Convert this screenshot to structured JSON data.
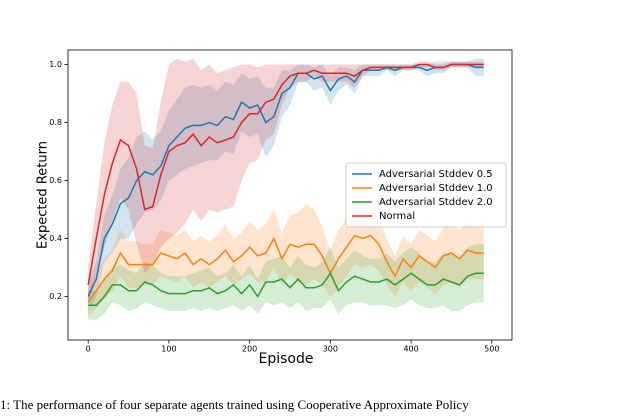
{
  "chart_data": {
    "type": "line",
    "xlabel": "Episode",
    "ylabel": "Expected Return",
    "caption": "1: The performance of four separate agents trained using Cooperative Approximate Policy",
    "x": [
      0,
      10,
      20,
      30,
      40,
      50,
      60,
      70,
      80,
      90,
      100,
      110,
      120,
      130,
      140,
      150,
      160,
      170,
      180,
      190,
      200,
      210,
      220,
      230,
      240,
      250,
      260,
      270,
      280,
      290,
      300,
      310,
      320,
      330,
      340,
      350,
      360,
      370,
      380,
      390,
      400,
      410,
      420,
      430,
      440,
      450,
      460,
      470,
      480,
      490
    ],
    "series": [
      {
        "name": "Adversarial Stddev 0.5",
        "color": "#1f77b4",
        "values": [
          0.2,
          0.26,
          0.4,
          0.45,
          0.52,
          0.54,
          0.6,
          0.63,
          0.62,
          0.65,
          0.72,
          0.75,
          0.78,
          0.79,
          0.79,
          0.8,
          0.79,
          0.82,
          0.81,
          0.87,
          0.85,
          0.86,
          0.8,
          0.82,
          0.9,
          0.92,
          0.97,
          0.97,
          0.95,
          0.96,
          0.91,
          0.95,
          0.96,
          0.94,
          0.98,
          0.98,
          0.98,
          0.99,
          0.98,
          0.99,
          0.99,
          0.99,
          0.98,
          0.99,
          0.99,
          1.0,
          1.0,
          1.0,
          0.99,
          0.99
        ],
        "spread": [
          0.05,
          0.06,
          0.08,
          0.1,
          0.12,
          0.14,
          0.15,
          0.14,
          0.12,
          0.12,
          0.12,
          0.13,
          0.14,
          0.14,
          0.13,
          0.13,
          0.12,
          0.12,
          0.12,
          0.1,
          0.1,
          0.1,
          0.12,
          0.1,
          0.08,
          0.06,
          0.03,
          0.03,
          0.04,
          0.04,
          0.05,
          0.04,
          0.03,
          0.04,
          0.02,
          0.02,
          0.02,
          0.01,
          0.02,
          0.01,
          0.01,
          0.01,
          0.02,
          0.02,
          0.02,
          0.01,
          0.01,
          0.01,
          0.03,
          0.03
        ]
      },
      {
        "name": "Adversarial Stddev 1.0",
        "color": "#ff7f0e",
        "values": [
          0.18,
          0.22,
          0.26,
          0.29,
          0.35,
          0.31,
          0.31,
          0.31,
          0.31,
          0.35,
          0.34,
          0.33,
          0.35,
          0.31,
          0.33,
          0.31,
          0.33,
          0.36,
          0.32,
          0.34,
          0.37,
          0.34,
          0.35,
          0.4,
          0.33,
          0.38,
          0.37,
          0.38,
          0.38,
          0.34,
          0.28,
          0.33,
          0.37,
          0.41,
          0.4,
          0.41,
          0.38,
          0.32,
          0.27,
          0.33,
          0.3,
          0.34,
          0.32,
          0.3,
          0.34,
          0.35,
          0.33,
          0.36,
          0.35,
          0.35
        ],
        "spread": [
          0.05,
          0.06,
          0.07,
          0.07,
          0.08,
          0.08,
          0.08,
          0.07,
          0.07,
          0.08,
          0.08,
          0.08,
          0.08,
          0.08,
          0.08,
          0.08,
          0.08,
          0.09,
          0.08,
          0.08,
          0.09,
          0.09,
          0.1,
          0.1,
          0.09,
          0.1,
          0.12,
          0.14,
          0.12,
          0.1,
          0.08,
          0.1,
          0.1,
          0.1,
          0.1,
          0.1,
          0.09,
          0.08,
          0.07,
          0.08,
          0.08,
          0.09,
          0.09,
          0.09,
          0.1,
          0.1,
          0.1,
          0.1,
          0.09,
          0.09
        ]
      },
      {
        "name": "Adversarial Stddev 2.0",
        "color": "#2ca02c",
        "values": [
          0.17,
          0.17,
          0.2,
          0.24,
          0.24,
          0.22,
          0.22,
          0.25,
          0.24,
          0.22,
          0.21,
          0.21,
          0.21,
          0.22,
          0.22,
          0.23,
          0.21,
          0.22,
          0.24,
          0.21,
          0.24,
          0.2,
          0.25,
          0.25,
          0.26,
          0.23,
          0.26,
          0.23,
          0.23,
          0.24,
          0.28,
          0.22,
          0.25,
          0.27,
          0.26,
          0.25,
          0.25,
          0.26,
          0.24,
          0.26,
          0.28,
          0.26,
          0.24,
          0.24,
          0.26,
          0.25,
          0.24,
          0.27,
          0.28,
          0.28
        ],
        "spread": [
          0.05,
          0.05,
          0.06,
          0.06,
          0.07,
          0.07,
          0.06,
          0.07,
          0.07,
          0.06,
          0.06,
          0.06,
          0.06,
          0.06,
          0.07,
          0.07,
          0.06,
          0.06,
          0.07,
          0.06,
          0.07,
          0.06,
          0.07,
          0.08,
          0.08,
          0.07,
          0.08,
          0.08,
          0.07,
          0.08,
          0.09,
          0.08,
          0.08,
          0.09,
          0.08,
          0.08,
          0.08,
          0.09,
          0.08,
          0.09,
          0.09,
          0.09,
          0.08,
          0.08,
          0.09,
          0.1,
          0.09,
          0.1,
          0.1,
          0.1
        ]
      },
      {
        "name": "Normal",
        "color": "#d62728",
        "values": [
          0.24,
          0.4,
          0.55,
          0.66,
          0.74,
          0.72,
          0.64,
          0.5,
          0.51,
          0.62,
          0.7,
          0.72,
          0.73,
          0.76,
          0.72,
          0.75,
          0.73,
          0.74,
          0.75,
          0.8,
          0.83,
          0.83,
          0.87,
          0.88,
          0.93,
          0.96,
          0.97,
          0.97,
          0.98,
          0.97,
          0.97,
          0.97,
          0.97,
          0.96,
          0.98,
          0.99,
          0.99,
          0.99,
          0.99,
          0.99,
          0.99,
          1.0,
          1.0,
          0.99,
          0.99,
          1.0,
          1.0,
          1.0,
          1.0,
          1.0
        ],
        "spread": [
          0.06,
          0.12,
          0.18,
          0.2,
          0.2,
          0.22,
          0.26,
          0.22,
          0.2,
          0.25,
          0.3,
          0.3,
          0.28,
          0.26,
          0.26,
          0.25,
          0.24,
          0.24,
          0.24,
          0.2,
          0.17,
          0.16,
          0.13,
          0.12,
          0.07,
          0.04,
          0.03,
          0.03,
          0.02,
          0.03,
          0.03,
          0.03,
          0.03,
          0.04,
          0.02,
          0.01,
          0.01,
          0.01,
          0.01,
          0.01,
          0.01,
          0.01,
          0.01,
          0.01,
          0.01,
          0.01,
          0.01,
          0.01,
          0.01,
          0.01
        ]
      }
    ],
    "xlim": [
      -25,
      525
    ],
    "ylim": [
      0.05,
      1.05
    ],
    "xticks": [
      0,
      100,
      200,
      300,
      400,
      500
    ],
    "yticks": [
      0.2,
      0.4,
      0.6,
      0.8,
      {
        "value": 1,
        "label": "1.0"
      }
    ],
    "legend": "center right"
  }
}
